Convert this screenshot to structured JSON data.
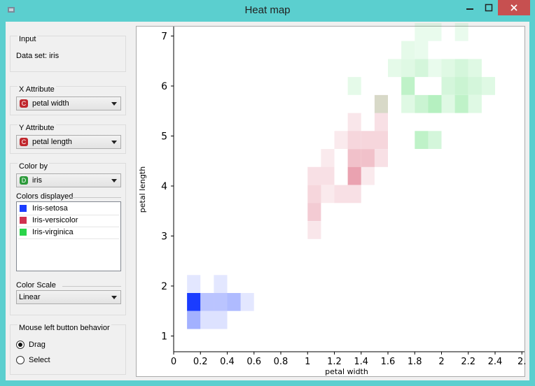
{
  "window": {
    "title": "Heat map"
  },
  "input": {
    "group_label": "Input",
    "dataset_text": "Data set: iris"
  },
  "x_attribute": {
    "group_label": "X Attribute",
    "value": "petal width",
    "badge": "C"
  },
  "y_attribute": {
    "group_label": "Y Attribute",
    "value": "petal length",
    "badge": "C"
  },
  "color_by": {
    "group_label": "Color by",
    "value": "iris",
    "badge": "D",
    "colors_label": "Colors displayed",
    "classes": [
      {
        "label": "Iris-setosa",
        "color": "#1a3cff"
      },
      {
        "label": "Iris-versicolor",
        "color": "#d0314f"
      },
      {
        "label": "Iris-virginica",
        "color": "#2ad44a"
      }
    ],
    "scale_label": "Color Scale",
    "scale_value": "Linear"
  },
  "mouse": {
    "group_label": "Mouse left button behavior",
    "options": [
      "Drag",
      "Select"
    ],
    "selected": "Drag"
  },
  "chart_data": {
    "type": "heatmap",
    "xlabel": "petal width",
    "ylabel": "petal length",
    "xlim": [
      0,
      2.5
    ],
    "ylim": [
      0.8,
      7.2
    ],
    "x_ticks": [
      "0",
      "0.2",
      "0.4",
      "0.6",
      "0.8",
      "1",
      "1.2",
      "1.4",
      "1.6",
      "1.8",
      "2",
      "2.2",
      "2.4",
      "2."
    ],
    "y_ticks": [
      "1",
      "2",
      "3",
      "4",
      "5",
      "6",
      "7"
    ],
    "bin_width": 0.1,
    "bin_height": 0.36,
    "cells": [
      {
        "x": 0.1,
        "y": 1.86,
        "cls": 0,
        "a": 0.12
      },
      {
        "x": 0.3,
        "y": 1.86,
        "cls": 0,
        "a": 0.12
      },
      {
        "x": 0.1,
        "y": 1.5,
        "cls": 0,
        "a": 1.0
      },
      {
        "x": 0.2,
        "y": 1.5,
        "cls": 0,
        "a": 0.3
      },
      {
        "x": 0.3,
        "y": 1.5,
        "cls": 0,
        "a": 0.3
      },
      {
        "x": 0.4,
        "y": 1.5,
        "cls": 0,
        "a": 0.35
      },
      {
        "x": 0.5,
        "y": 1.5,
        "cls": 0,
        "a": 0.12
      },
      {
        "x": 0.1,
        "y": 1.14,
        "cls": 0,
        "a": 0.4
      },
      {
        "x": 0.2,
        "y": 1.14,
        "cls": 0,
        "a": 0.15
      },
      {
        "x": 0.3,
        "y": 1.14,
        "cls": 0,
        "a": 0.15
      },
      {
        "x": 1.0,
        "y": 2.94,
        "cls": 1,
        "a": 0.12
      },
      {
        "x": 1.0,
        "y": 3.3,
        "cls": 1,
        "a": 0.25
      },
      {
        "x": 1.0,
        "y": 3.66,
        "cls": 1,
        "a": 0.2
      },
      {
        "x": 1.1,
        "y": 3.66,
        "cls": 1,
        "a": 0.1
      },
      {
        "x": 1.2,
        "y": 3.66,
        "cls": 1,
        "a": 0.15
      },
      {
        "x": 1.3,
        "y": 3.66,
        "cls": 1,
        "a": 0.15
      },
      {
        "x": 1.0,
        "y": 4.02,
        "cls": 1,
        "a": 0.15
      },
      {
        "x": 1.1,
        "y": 4.02,
        "cls": 1,
        "a": 0.15
      },
      {
        "x": 1.3,
        "y": 4.02,
        "cls": 1,
        "a": 0.45
      },
      {
        "x": 1.4,
        "y": 4.02,
        "cls": 1,
        "a": 0.1
      },
      {
        "x": 1.1,
        "y": 4.38,
        "cls": 1,
        "a": 0.1
      },
      {
        "x": 1.3,
        "y": 4.38,
        "cls": 1,
        "a": 0.3
      },
      {
        "x": 1.4,
        "y": 4.38,
        "cls": 1,
        "a": 0.3
      },
      {
        "x": 1.5,
        "y": 4.38,
        "cls": 1,
        "a": 0.15
      },
      {
        "x": 1.2,
        "y": 4.74,
        "cls": 1,
        "a": 0.1
      },
      {
        "x": 1.3,
        "y": 4.74,
        "cls": 1,
        "a": 0.2
      },
      {
        "x": 1.4,
        "y": 4.74,
        "cls": 1,
        "a": 0.2
      },
      {
        "x": 1.5,
        "y": 4.74,
        "cls": 1,
        "a": 0.2
      },
      {
        "x": 1.3,
        "y": 5.1,
        "cls": 1,
        "a": 0.12
      },
      {
        "x": 1.5,
        "y": 5.1,
        "cls": 1,
        "a": 0.15
      },
      {
        "x": 1.5,
        "y": 5.46,
        "cls": 1,
        "a": 0.18
      },
      {
        "x": 1.8,
        "y": 4.74,
        "cls": 2,
        "a": 0.3
      },
      {
        "x": 1.9,
        "y": 4.74,
        "cls": 2,
        "a": 0.2
      },
      {
        "x": 1.5,
        "y": 5.46,
        "cls": 2,
        "a": 0.15
      },
      {
        "x": 1.7,
        "y": 5.46,
        "cls": 2,
        "a": 0.15
      },
      {
        "x": 1.8,
        "y": 5.46,
        "cls": 2,
        "a": 0.25
      },
      {
        "x": 1.9,
        "y": 5.46,
        "cls": 2,
        "a": 0.35
      },
      {
        "x": 2.0,
        "y": 5.46,
        "cls": 2,
        "a": 0.15
      },
      {
        "x": 2.1,
        "y": 5.46,
        "cls": 2,
        "a": 0.3
      },
      {
        "x": 2.2,
        "y": 5.46,
        "cls": 2,
        "a": 0.15
      },
      {
        "x": 1.3,
        "y": 5.82,
        "cls": 2,
        "a": 0.12
      },
      {
        "x": 1.7,
        "y": 5.82,
        "cls": 2,
        "a": 0.3
      },
      {
        "x": 2.0,
        "y": 5.82,
        "cls": 2,
        "a": 0.2
      },
      {
        "x": 2.1,
        "y": 5.82,
        "cls": 2,
        "a": 0.25
      },
      {
        "x": 2.2,
        "y": 5.82,
        "cls": 2,
        "a": 0.2
      },
      {
        "x": 2.3,
        "y": 5.82,
        "cls": 2,
        "a": 0.15
      },
      {
        "x": 1.6,
        "y": 6.18,
        "cls": 2,
        "a": 0.12
      },
      {
        "x": 1.7,
        "y": 6.18,
        "cls": 2,
        "a": 0.15
      },
      {
        "x": 1.8,
        "y": 6.18,
        "cls": 2,
        "a": 0.2
      },
      {
        "x": 1.9,
        "y": 6.18,
        "cls": 2,
        "a": 0.1
      },
      {
        "x": 2.0,
        "y": 6.18,
        "cls": 2,
        "a": 0.15
      },
      {
        "x": 2.1,
        "y": 6.18,
        "cls": 2,
        "a": 0.2
      },
      {
        "x": 2.2,
        "y": 6.18,
        "cls": 2,
        "a": 0.15
      },
      {
        "x": 1.7,
        "y": 6.54,
        "cls": 2,
        "a": 0.12
      },
      {
        "x": 1.8,
        "y": 6.54,
        "cls": 2,
        "a": 0.1
      },
      {
        "x": 1.8,
        "y": 6.9,
        "cls": 2,
        "a": 0.1
      },
      {
        "x": 1.9,
        "y": 6.9,
        "cls": 2,
        "a": 0.1
      },
      {
        "x": 2.1,
        "y": 6.9,
        "cls": 2,
        "a": 0.1
      }
    ],
    "grid": false
  }
}
